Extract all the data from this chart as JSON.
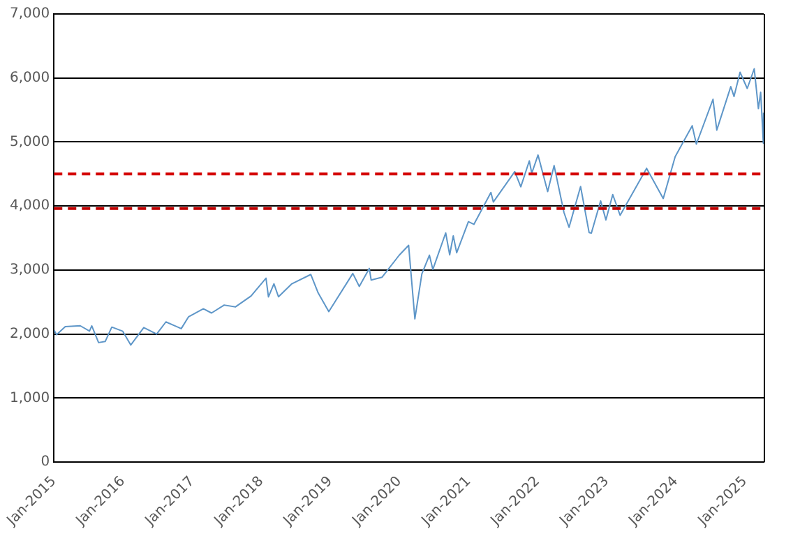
{
  "chart_data": {
    "type": "line",
    "x": [
      "2015-01-02",
      "2015-01-15",
      "2015-03-02",
      "2015-05-20",
      "2015-07-08",
      "2015-07-20",
      "2015-08-25",
      "2015-09-29",
      "2015-11-03",
      "2015-12-31",
      "2016-02-11",
      "2016-04-20",
      "2016-06-27",
      "2016-08-15",
      "2016-11-04",
      "2016-12-13",
      "2017-03-01",
      "2017-04-13",
      "2017-06-19",
      "2017-08-18",
      "2017-11-08",
      "2018-01-26",
      "2018-02-08",
      "2018-03-09",
      "2018-04-02",
      "2018-06-12",
      "2018-09-20",
      "2018-10-29",
      "2018-12-24",
      "2019-04-30",
      "2019-06-03",
      "2019-07-26",
      "2019-08-05",
      "2019-10-01",
      "2019-12-31",
      "2020-02-19",
      "2020-03-23",
      "2020-04-29",
      "2020-06-08",
      "2020-06-26",
      "2020-09-02",
      "2020-09-23",
      "2020-10-12",
      "2020-10-30",
      "2020-12-31",
      "2021-01-29",
      "2021-04-29",
      "2021-05-12",
      "2021-09-02",
      "2021-10-04",
      "2021-11-18",
      "2021-12-01",
      "2022-01-03",
      "2022-02-23",
      "2022-03-29",
      "2022-05-20",
      "2022-06-16",
      "2022-08-16",
      "2022-09-30",
      "2022-10-12",
      "2022-11-30",
      "2022-12-28",
      "2023-02-02",
      "2023-03-13",
      "2023-07-31",
      "2023-10-27",
      "2023-12-29",
      "2024-03-28",
      "2024-04-19",
      "2024-07-16",
      "2024-08-05",
      "2024-10-18",
      "2024-11-04",
      "2024-12-06",
      "2025-01-13",
      "2025-02-19",
      "2025-03-13",
      "2025-03-25",
      "2025-04-08",
      "2025-04-09"
    ],
    "series": [
      {
        "color": "#5e96c8",
        "values": [
          2058,
          1992,
          2117,
          2130,
          2047,
          2128,
          1867,
          1884,
          2109,
          2044,
          1829,
          2102,
          2000,
          2190,
          2085,
          2271,
          2395,
          2329,
          2453,
          2425,
          2594,
          2873,
          2581,
          2786,
          2582,
          2786,
          2931,
          2641,
          2351,
          2946,
          2744,
          3025,
          2844,
          2887,
          3231,
          3386,
          2237,
          2940,
          3232,
          3009,
          3580,
          3237,
          3534,
          3270,
          3756,
          3714,
          4211,
          4063,
          4537,
          4300,
          4705,
          4513,
          4797,
          4225,
          4632,
          3901,
          3667,
          4305,
          3586,
          3577,
          4080,
          3783,
          4179,
          3855,
          4589,
          4117,
          4770,
          5254,
          4967,
          5667,
          5186,
          5865,
          5712,
          6090,
          5836,
          6144,
          5522,
          5777,
          4983,
          5457
        ]
      }
    ],
    "xlim": [
      "2015-01-01",
      "2025-04-10"
    ],
    "xticks": [
      {
        "value": "2015-01-01",
        "label": "Jan-2015"
      },
      {
        "value": "2016-01-01",
        "label": "Jan-2016"
      },
      {
        "value": "2017-01-01",
        "label": "Jan-2017"
      },
      {
        "value": "2018-01-01",
        "label": "Jan-2018"
      },
      {
        "value": "2019-01-01",
        "label": "Jan-2019"
      },
      {
        "value": "2020-01-01",
        "label": "Jan-2020"
      },
      {
        "value": "2021-01-01",
        "label": "Jan-2021"
      },
      {
        "value": "2022-01-01",
        "label": "Jan-2022"
      },
      {
        "value": "2023-01-01",
        "label": "Jan-2023"
      },
      {
        "value": "2024-01-01",
        "label": "Jan-2024"
      },
      {
        "value": "2025-01-01",
        "label": "Jan-2025"
      }
    ],
    "ylim": [
      0,
      7000
    ],
    "yticks": [
      {
        "value": 0,
        "label": "0"
      },
      {
        "value": 1000,
        "label": "1,000"
      },
      {
        "value": 2000,
        "label": "2,000"
      },
      {
        "value": 3000,
        "label": "3,000"
      },
      {
        "value": 4000,
        "label": "4,000"
      },
      {
        "value": 5000,
        "label": "5,000"
      },
      {
        "value": 6000,
        "label": "6,000"
      },
      {
        "value": 7000,
        "label": "7,000"
      }
    ],
    "ref_lines": [
      {
        "axis": "y",
        "value": 4500,
        "color": "#d40000",
        "line_style": "dashed"
      },
      {
        "axis": "y",
        "value": 3960,
        "color": "#c00000",
        "line_style": "dashed"
      }
    ],
    "grid": "y",
    "legend": false,
    "marker": "none",
    "line_style": "solid"
  }
}
